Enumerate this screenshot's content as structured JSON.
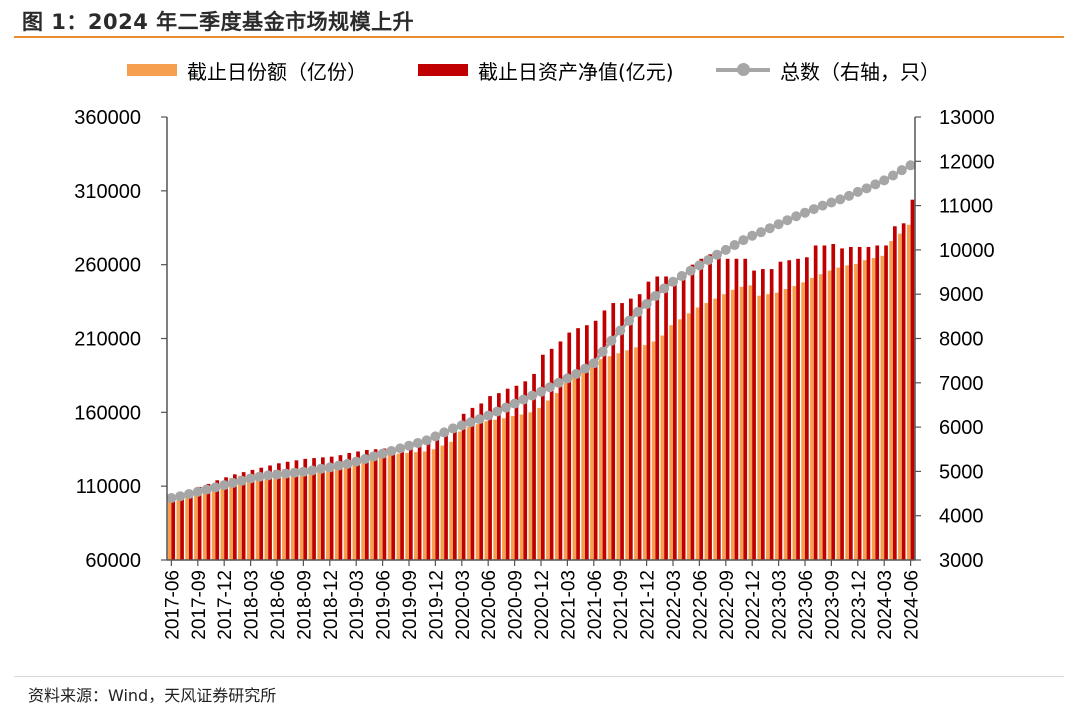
{
  "title": "图 1：2024 年二季度基金市场规模上升",
  "source": "资料来源：Wind，天风证券研究所",
  "colors": {
    "shares_bar": "#F4A04E",
    "nav_bar": "#C00000",
    "count_line": "#A6A6A6",
    "title_rule": "#E98C32",
    "axis": "#555555"
  },
  "legend": {
    "shares": "截止日份额（亿份）",
    "nav": "截止日资产净值(亿元)",
    "count": "总数（右轴，只）"
  },
  "chart_data": {
    "type": "bar",
    "title": "图 1：2024 年二季度基金市场规模上升",
    "xlabel": "",
    "ylabel": "",
    "ylim": [
      60000,
      360000
    ],
    "y2lim": [
      3000,
      13000
    ],
    "y_ticks": [
      "360000",
      "310000",
      "260000",
      "210000",
      "160000",
      "110000",
      "60000"
    ],
    "y2_ticks": [
      "13000",
      "12000",
      "11000",
      "10000",
      "9000",
      "8000",
      "7000",
      "6000",
      "5000",
      "4000",
      "3000"
    ],
    "x_tick_labels": [
      "2017-06",
      "2017-09",
      "2017-12",
      "2018-03",
      "2018-06",
      "2018-09",
      "2018-12",
      "2019-03",
      "2019-06",
      "2019-09",
      "2019-12",
      "2020-03",
      "2020-06",
      "2020-09",
      "2020-12",
      "2021-03",
      "2021-06",
      "2021-09",
      "2021-12",
      "2022-03",
      "2022-06",
      "2022-09",
      "2022-12",
      "2023-03",
      "2023-06",
      "2023-09",
      "2023-12",
      "2024-03",
      "2024-06"
    ],
    "categories": [
      "2017-06",
      "2017-07",
      "2017-08",
      "2017-09",
      "2017-10",
      "2017-11",
      "2017-12",
      "2018-01",
      "2018-02",
      "2018-03",
      "2018-04",
      "2018-05",
      "2018-06",
      "2018-07",
      "2018-08",
      "2018-09",
      "2018-10",
      "2018-11",
      "2018-12",
      "2019-01",
      "2019-02",
      "2019-03",
      "2019-04",
      "2019-05",
      "2019-06",
      "2019-07",
      "2019-08",
      "2019-09",
      "2019-10",
      "2019-11",
      "2019-12",
      "2020-01",
      "2020-02",
      "2020-03",
      "2020-04",
      "2020-05",
      "2020-06",
      "2020-07",
      "2020-08",
      "2020-09",
      "2020-10",
      "2020-11",
      "2020-12",
      "2021-01",
      "2021-02",
      "2021-03",
      "2021-04",
      "2021-05",
      "2021-06",
      "2021-07",
      "2021-08",
      "2021-09",
      "2021-10",
      "2021-11",
      "2021-12",
      "2022-01",
      "2022-02",
      "2022-03",
      "2022-04",
      "2022-05",
      "2022-06",
      "2022-07",
      "2022-08",
      "2022-09",
      "2022-10",
      "2022-11",
      "2022-12",
      "2023-01",
      "2023-02",
      "2023-03",
      "2023-04",
      "2023-05",
      "2023-06",
      "2023-07",
      "2023-08",
      "2023-09",
      "2023-10",
      "2023-11",
      "2023-12",
      "2024-01",
      "2024-02",
      "2024-03",
      "2024-04",
      "2024-05",
      "2024-06"
    ],
    "series": [
      {
        "name": "截止日份额（亿份）",
        "axis": "left",
        "kind": "bar",
        "values": [
          100000,
          102000,
          104500,
          107000,
          109000,
          111000,
          113500,
          115500,
          117000,
          118000,
          119000,
          120000,
          121000,
          121500,
          122000,
          122500,
          123000,
          123500,
          124000,
          125000,
          126500,
          128000,
          129500,
          130500,
          131000,
          131500,
          132000,
          132500,
          133000,
          133500,
          135000,
          137500,
          140000,
          147000,
          150000,
          152000,
          154000,
          155000,
          156000,
          157500,
          158500,
          160000,
          163000,
          168000,
          173000,
          180000,
          186000,
          190000,
          193000,
          196000,
          198000,
          200000,
          202000,
          204000,
          205500,
          208000,
          212000,
          219000,
          223000,
          227000,
          231000,
          234000,
          237000,
          240000,
          243000,
          245000,
          246000,
          239000,
          240000,
          241000,
          243500,
          245500,
          248000,
          251000,
          253500,
          256000,
          258000,
          259500,
          260500,
          263000,
          264500,
          266000,
          276000,
          281000,
          287000
        ]
      },
      {
        "name": "截止日资产净值(亿元)",
        "axis": "left",
        "kind": "bar",
        "values": [
          102000,
          104000,
          106500,
          109500,
          111500,
          114000,
          116000,
          118000,
          119500,
          121000,
          122500,
          124000,
          125500,
          126500,
          127500,
          128500,
          129000,
          129500,
          130000,
          131000,
          132500,
          133500,
          134500,
          135000,
          135500,
          136000,
          136500,
          137000,
          138000,
          140500,
          143500,
          146500,
          150000,
          159000,
          163000,
          166000,
          171000,
          173000,
          176000,
          178000,
          181000,
          186000,
          199000,
          203000,
          208000,
          214000,
          217000,
          219000,
          222000,
          229000,
          234000,
          234000,
          237000,
          240000,
          248500,
          252000,
          252000,
          251000,
          251000,
          260000,
          264000,
          267000,
          267000,
          264000,
          264000,
          264000,
          256000,
          257000,
          257000,
          262000,
          263000,
          264000,
          265000,
          273000,
          273000,
          274000,
          271000,
          272000,
          272000,
          272000,
          273000,
          273000,
          286000,
          288000,
          304000
        ]
      },
      {
        "name": "总数（右轴，只）",
        "axis": "right",
        "kind": "line",
        "values": [
          4400,
          4440,
          4490,
          4540,
          4590,
          4640,
          4690,
          4740,
          4790,
          4840,
          4880,
          4910,
          4930,
          4950,
          4970,
          4990,
          5020,
          5060,
          5090,
          5130,
          5170,
          5220,
          5280,
          5340,
          5400,
          5460,
          5520,
          5580,
          5640,
          5700,
          5790,
          5880,
          5970,
          6040,
          6110,
          6180,
          6260,
          6350,
          6440,
          6530,
          6620,
          6710,
          6800,
          6900,
          7000,
          7100,
          7200,
          7320,
          7440,
          7700,
          7950,
          8180,
          8400,
          8600,
          8780,
          8960,
          9130,
          9280,
          9410,
          9530,
          9650,
          9770,
          9890,
          10000,
          10110,
          10220,
          10320,
          10400,
          10490,
          10580,
          10670,
          10760,
          10840,
          10920,
          11000,
          11070,
          11140,
          11220,
          11310,
          11390,
          11480,
          11570,
          11680,
          11800,
          11910
        ]
      }
    ]
  }
}
